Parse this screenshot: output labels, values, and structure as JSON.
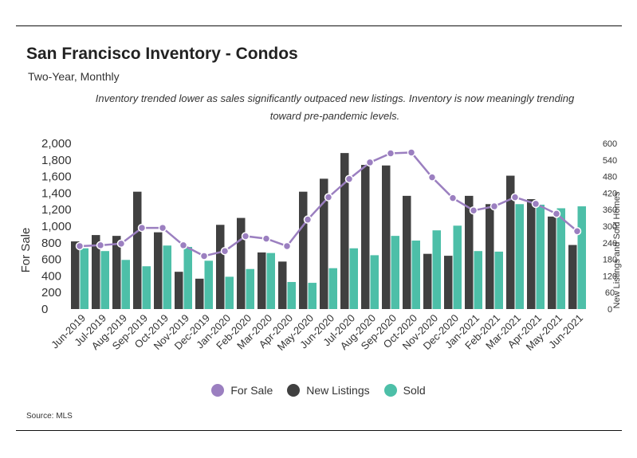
{
  "header": {
    "title": "San Francisco Inventory - Condos",
    "subtitle": "Two-Year, Monthly",
    "annotation": "Inventory trended lower as sales significantly outpaced new listings. Inventory is now meaningly trending toward pre-pandemic levels."
  },
  "footer": {
    "source": "Source:  MLS"
  },
  "colors": {
    "for_sale": "#9b7fc0",
    "new_listings": "#404040",
    "sold": "#4dbfa8"
  },
  "chart_data": {
    "type": "bar",
    "categories": [
      "Jun-2019",
      "Jul-2019",
      "Aug-2019",
      "Sep-2019",
      "Oct-2019",
      "Nov-2019",
      "Dec-2019",
      "Jan-2020",
      "Feb-2020",
      "Mar-2020",
      "Apr-2020",
      "May-2020",
      "Jun-2020",
      "Jul-2020",
      "Aug-2020",
      "Sep-2020",
      "Oct-2020",
      "Nov-2020",
      "Dec-2020",
      "Jan-2021",
      "Feb-2021",
      "Mar-2021",
      "Apr-2021",
      "May-2021",
      "Jun-2021"
    ],
    "ylabel_left": "For Sale",
    "ylabel_right": "New Listings and Sold Homes",
    "ylim_left": [
      0,
      2000
    ],
    "ylim_right": [
      0,
      600
    ],
    "yticks_left": [
      "2,000",
      "1,800",
      "1,600",
      "1,400",
      "1,200",
      "1,000",
      "800",
      "600",
      "400",
      "200",
      "0"
    ],
    "yticks_right": [
      "600",
      "540",
      "480",
      "420",
      "360",
      "300",
      "240",
      "180",
      "120",
      "60",
      "0"
    ],
    "legend_position": "bottom",
    "series": [
      {
        "name": "For Sale",
        "kind": "line",
        "axis": "left",
        "values": [
          760,
          770,
          790,
          980,
          980,
          770,
          640,
          700,
          880,
          850,
          760,
          1080,
          1350,
          1570,
          1770,
          1880,
          1890,
          1590,
          1340,
          1190,
          1240,
          1350,
          1270,
          1150,
          940
        ]
      },
      {
        "name": "New Listings",
        "kind": "bar",
        "axis": "right",
        "values": [
          245,
          268,
          265,
          425,
          278,
          135,
          110,
          305,
          330,
          205,
          172,
          425,
          472,
          565,
          522,
          520,
          410,
          200,
          193,
          410,
          380,
          483,
          398,
          335,
          232
        ]
      },
      {
        "name": "Sold",
        "kind": "bar",
        "axis": "right",
        "values": [
          220,
          210,
          178,
          155,
          230,
          225,
          175,
          117,
          145,
          203,
          98,
          95,
          148,
          220,
          195,
          265,
          248,
          285,
          302,
          210,
          208,
          380,
          378,
          365,
          372
        ]
      }
    ]
  }
}
